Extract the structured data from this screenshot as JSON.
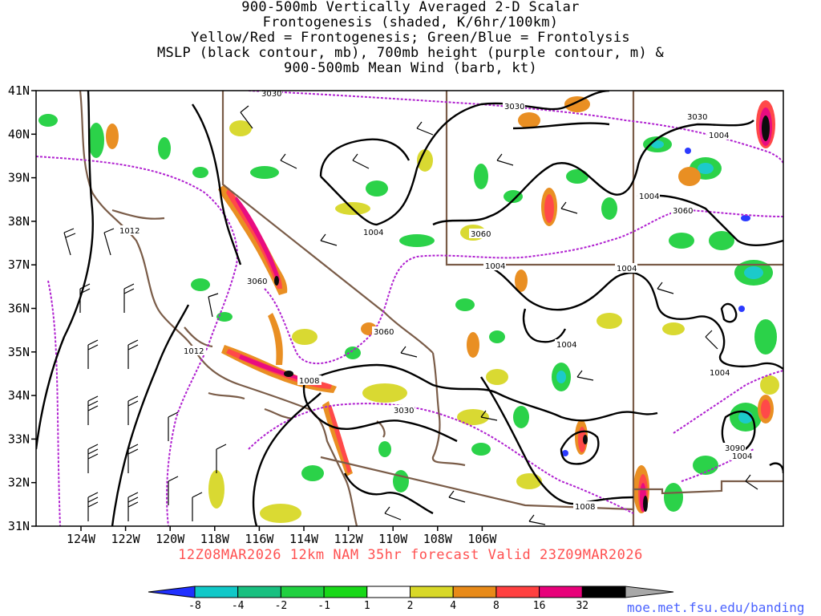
{
  "title": {
    "lines": [
      "900-500mb Vertically Averaged 2-D Scalar",
      "Frontogenesis (shaded, K/6hr/100km)",
      "Yellow/Red = Frontogenesis;  Green/Blue = Frontolysis",
      "MSLP (black contour, mb), 700mb height (purple contour, m) &",
      "900-500mb Mean Wind (barb, kt)"
    ]
  },
  "axes": {
    "lat_labels": [
      "41N",
      "40N",
      "39N",
      "38N",
      "37N",
      "36N",
      "35N",
      "34N",
      "33N",
      "32N",
      "31N"
    ],
    "lon_labels": [
      "124W",
      "122W",
      "120W",
      "118W",
      "116W",
      "114W",
      "112W",
      "110W",
      "108W",
      "106W"
    ]
  },
  "contour_labels": {
    "mslp": [
      "1004",
      "1004",
      "1004",
      "1004",
      "1004",
      "1004",
      "1008",
      "1008",
      "1012",
      "1012",
      "1004",
      "1004"
    ],
    "height": [
      "3030",
      "3030",
      "3030",
      "3060",
      "3060",
      "3060",
      "3030",
      "3060",
      "3090"
    ]
  },
  "valid_line": "12Z08MAR2026 12km NAM 35hr forecast Valid 23Z09MAR2026",
  "colorbar": {
    "labels": [
      "-8",
      "-4",
      "-2",
      "-1",
      "1",
      "2",
      "4",
      "8",
      "16",
      "32"
    ],
    "colors": [
      "#2030ff",
      "#10c8c8",
      "#18c080",
      "#20d040",
      "#18d818",
      "#ffffff",
      "#d8d828",
      "#e88a18",
      "#ff4040",
      "#e8007a",
      "#000000",
      "#a8a8a8"
    ]
  },
  "source_url": "moe.met.fsu.edu/banding"
}
